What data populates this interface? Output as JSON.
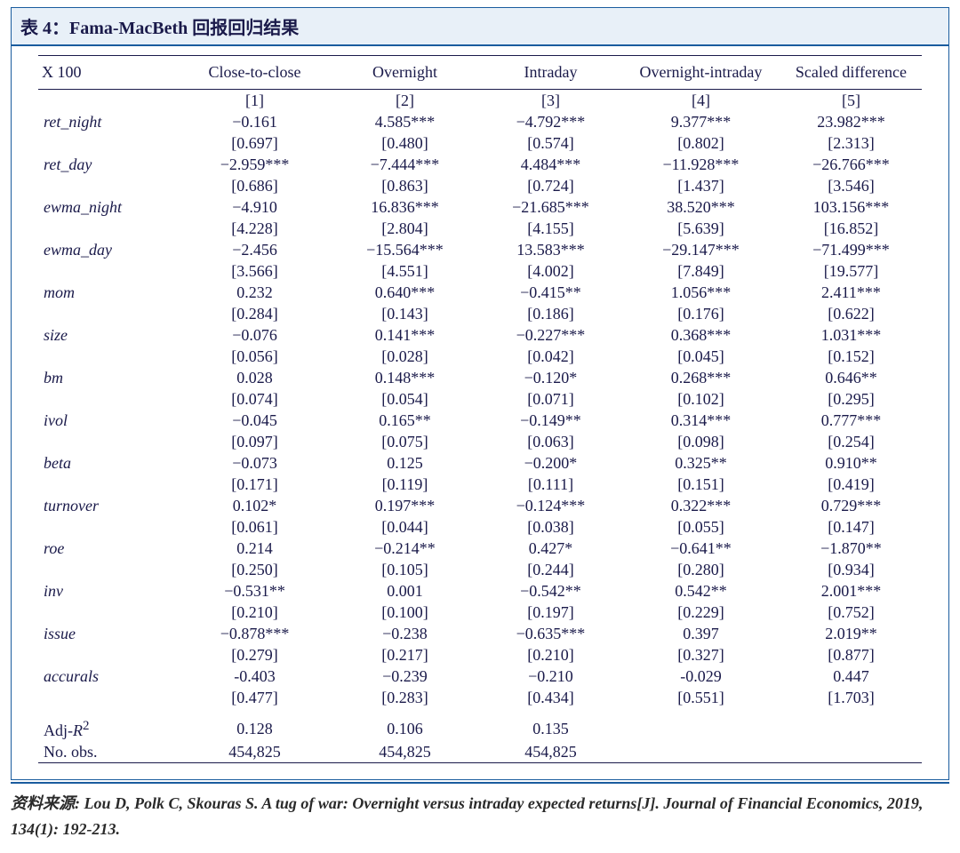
{
  "title": "表 4：Fama-MacBeth 回报回归结果",
  "header": {
    "corner": "X 100",
    "cols": [
      "Close-to-close",
      "Overnight",
      "Intraday",
      "Overnight-intraday",
      "Scaled difference"
    ]
  },
  "index_row": [
    "[1]",
    "[2]",
    "[3]",
    "[4]",
    "[5]"
  ],
  "vars": [
    {
      "name": "ret_night",
      "coef": [
        "−0.161",
        "4.585***",
        "−4.792***",
        "9.377***",
        "23.982***"
      ],
      "se": [
        "[0.697]",
        "[0.480]",
        "[0.574]",
        "[0.802]",
        "[2.313]"
      ]
    },
    {
      "name": "ret_day",
      "coef": [
        "−2.959***",
        "−7.444***",
        "4.484***",
        "−11.928***",
        "−26.766***"
      ],
      "se": [
        "[0.686]",
        "[0.863]",
        "[0.724]",
        "[1.437]",
        "[3.546]"
      ]
    },
    {
      "name": "ewma_night",
      "coef": [
        "−4.910",
        "16.836***",
        "−21.685***",
        "38.520***",
        "103.156***"
      ],
      "se": [
        "[4.228]",
        "[2.804]",
        "[4.155]",
        "[5.639]",
        "[16.852]"
      ]
    },
    {
      "name": "ewma_day",
      "coef": [
        "−2.456",
        "−15.564***",
        "13.583***",
        "−29.147***",
        "−71.499***"
      ],
      "se": [
        "[3.566]",
        "[4.551]",
        "[4.002]",
        "[7.849]",
        "[19.577]"
      ]
    },
    {
      "name": "mom",
      "coef": [
        "0.232",
        "0.640***",
        "−0.415**",
        "1.056***",
        "2.411***"
      ],
      "se": [
        "[0.284]",
        "[0.143]",
        "[0.186]",
        "[0.176]",
        "[0.622]"
      ]
    },
    {
      "name": "size",
      "coef": [
        "−0.076",
        "0.141***",
        "−0.227***",
        "0.368***",
        "1.031***"
      ],
      "se": [
        "[0.056]",
        "[0.028]",
        "[0.042]",
        "[0.045]",
        "[0.152]"
      ]
    },
    {
      "name": "bm",
      "coef": [
        "0.028",
        "0.148***",
        "−0.120*",
        "0.268***",
        "0.646**"
      ],
      "se": [
        "[0.074]",
        "[0.054]",
        "[0.071]",
        "[0.102]",
        "[0.295]"
      ]
    },
    {
      "name": "ivol",
      "coef": [
        "−0.045",
        "0.165**",
        "−0.149**",
        "0.314***",
        "0.777***"
      ],
      "se": [
        "[0.097]",
        "[0.075]",
        "[0.063]",
        "[0.098]",
        "[0.254]"
      ]
    },
    {
      "name": "beta",
      "coef": [
        "−0.073",
        "0.125",
        "−0.200*",
        "0.325**",
        "0.910**"
      ],
      "se": [
        "[0.171]",
        "[0.119]",
        "[0.111]",
        "[0.151]",
        "[0.419]"
      ]
    },
    {
      "name": "turnover",
      "coef": [
        "0.102*",
        "0.197***",
        "−0.124***",
        "0.322***",
        "0.729***"
      ],
      "se": [
        "[0.061]",
        "[0.044]",
        "[0.038]",
        "[0.055]",
        "[0.147]"
      ]
    },
    {
      "name": "roe",
      "coef": [
        "0.214",
        "−0.214**",
        "0.427*",
        "−0.641**",
        "−1.870**"
      ],
      "se": [
        "[0.250]",
        "[0.105]",
        "[0.244]",
        "[0.280]",
        "[0.934]"
      ]
    },
    {
      "name": "inv",
      "coef": [
        "−0.531**",
        "0.001",
        "−0.542**",
        "0.542**",
        "2.001***"
      ],
      "se": [
        "[0.210]",
        "[0.100]",
        "[0.197]",
        "[0.229]",
        "[0.752]"
      ]
    },
    {
      "name": "issue",
      "coef": [
        "−0.878***",
        "−0.238",
        "−0.635***",
        "0.397",
        "2.019**"
      ],
      "se": [
        "[0.279]",
        "[0.217]",
        "[0.210]",
        "[0.327]",
        "[0.877]"
      ]
    },
    {
      "name": "accurals",
      "coef": [
        "-0.403",
        "−0.239",
        "−0.210",
        "-0.029",
        "0.447"
      ],
      "se": [
        "[0.477]",
        "[0.283]",
        "[0.434]",
        "[0.551]",
        "[1.703]"
      ]
    }
  ],
  "footer_rows": [
    {
      "name": "Adj-R²",
      "vals": [
        "0.128",
        "0.106",
        "0.135",
        "",
        ""
      ]
    },
    {
      "name": "No. obs.",
      "vals": [
        "454,825",
        "454,825",
        "454,825",
        "",
        ""
      ]
    }
  ],
  "source": "资料来源: Lou D, Polk C, Skouras S. A tug of war: Overnight versus intraday expected returns[J]. Journal of Financial Economics, 2019, 134(1): 192-213.",
  "style": {
    "accent": "#1a5c9e",
    "text_color": "#1a1a4a",
    "header_bg": "#e8f0f8",
    "font_family": "Times New Roman",
    "base_fontsize": 18,
    "title_fontsize": 20,
    "col_widths_pct": [
      16,
      17,
      17,
      16,
      18,
      16
    ]
  }
}
